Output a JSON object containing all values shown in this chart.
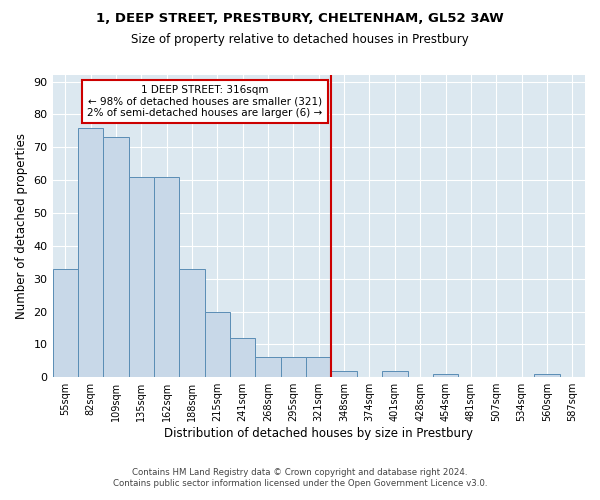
{
  "title1": "1, DEEP STREET, PRESTBURY, CHELTENHAM, GL52 3AW",
  "title2": "Size of property relative to detached houses in Prestbury",
  "xlabel": "Distribution of detached houses by size in Prestbury",
  "ylabel": "Number of detached properties",
  "bar_values": [
    33,
    76,
    73,
    61,
    61,
    33,
    20,
    12,
    6,
    6,
    6,
    2,
    0,
    2,
    0,
    1,
    0,
    0,
    0,
    1,
    0
  ],
  "bin_labels": [
    "55sqm",
    "82sqm",
    "109sqm",
    "135sqm",
    "162sqm",
    "188sqm",
    "215sqm",
    "241sqm",
    "268sqm",
    "295sqm",
    "321sqm",
    "348sqm",
    "374sqm",
    "401sqm",
    "428sqm",
    "454sqm",
    "481sqm",
    "507sqm",
    "534sqm",
    "560sqm",
    "587sqm"
  ],
  "bar_color": "#c8d8e8",
  "bar_edge_color": "#5a8db5",
  "highlight_bin_index": 10,
  "vline_color": "#cc0000",
  "annotation_text": "1 DEEP STREET: 316sqm\n← 98% of detached houses are smaller (321)\n2% of semi-detached houses are larger (6) →",
  "annotation_box_color": "#cc0000",
  "ylim": [
    0,
    92
  ],
  "yticks": [
    0,
    10,
    20,
    30,
    40,
    50,
    60,
    70,
    80,
    90
  ],
  "bg_color": "#dce8f0",
  "footnote1": "Contains HM Land Registry data © Crown copyright and database right 2024.",
  "footnote2": "Contains public sector information licensed under the Open Government Licence v3.0."
}
